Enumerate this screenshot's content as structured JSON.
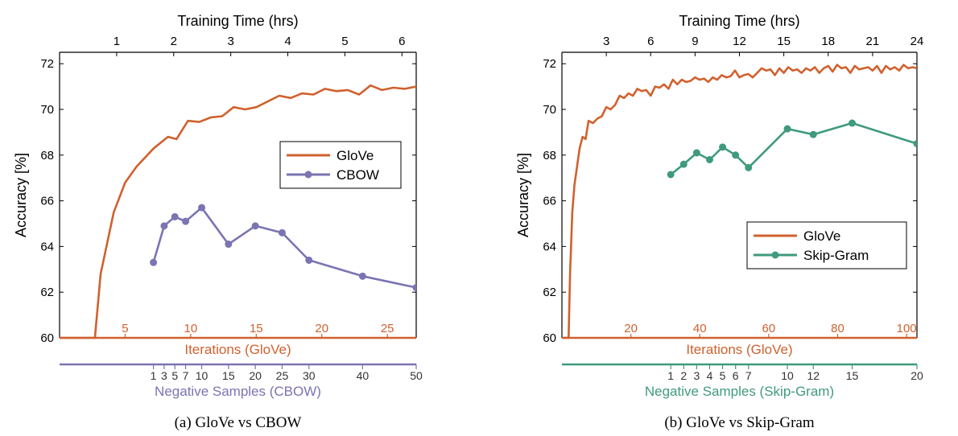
{
  "colors": {
    "glove": "#D0612E",
    "cbow": "#7A74B3",
    "skipgram": "#3F9A7E",
    "axis": "#000000"
  },
  "chart_data": [
    {
      "type": "line",
      "caption": "(a)  GloVe vs CBOW",
      "ylabel": "Accuracy [%]",
      "ylim": [
        60,
        72.5
      ],
      "yticks": [
        "60",
        "62",
        "64",
        "66",
        "68",
        "70",
        "72"
      ],
      "top_axis": {
        "label": "Training Time (hrs)",
        "range": [
          0,
          6.25
        ],
        "ticks": [
          "1",
          "2",
          "3",
          "4",
          "5",
          "6"
        ]
      },
      "iter_axis": {
        "label": "Iterations (GloVe)",
        "range": [
          0,
          27.2
        ],
        "ticks": [
          "5",
          "10",
          "15",
          "20",
          "25"
        ]
      },
      "neg_axis": {
        "label": "Negative Samples (CBOW)",
        "range": [
          -16.5,
          50
        ],
        "ticks": [
          "1",
          "3",
          "5",
          "7",
          "10",
          "15",
          "20",
          "25",
          "30",
          "40",
          "50"
        ]
      },
      "legend": {
        "position": "right",
        "entries": [
          "GloVe",
          "CBOW"
        ]
      },
      "grid": false,
      "series": [
        {
          "name": "GloVe",
          "x_axis": "top_axis",
          "x": [
            0,
            0.62,
            0.72,
            0.95,
            1.15,
            1.35,
            1.65,
            1.9,
            2.05,
            2.25,
            2.45,
            2.65,
            2.85,
            3.05,
            3.25,
            3.45,
            3.65,
            3.85,
            4.05,
            4.25,
            4.45,
            4.65,
            4.85,
            5.05,
            5.25,
            5.45,
            5.65,
            5.85,
            6.05,
            6.25
          ],
          "values": [
            60,
            60,
            62.8,
            65.5,
            66.8,
            67.5,
            68.3,
            68.8,
            68.7,
            69.5,
            69.45,
            69.65,
            69.7,
            70.1,
            70.0,
            70.1,
            70.35,
            70.6,
            70.5,
            70.7,
            70.65,
            70.9,
            70.8,
            70.85,
            70.65,
            71.05,
            70.85,
            70.95,
            70.9,
            71.0
          ]
        },
        {
          "name": "CBOW",
          "x_axis": "neg_axis",
          "x": [
            1,
            3,
            5,
            7,
            10,
            15,
            20,
            25,
            30,
            40,
            50
          ],
          "values": [
            63.3,
            64.9,
            65.3,
            65.1,
            65.7,
            64.1,
            64.9,
            64.6,
            63.4,
            62.7,
            62.2
          ]
        }
      ]
    },
    {
      "type": "line",
      "caption": "(b)  GloVe vs Skip-Gram",
      "ylabel": "Accuracy [%]",
      "ylim": [
        60,
        72.5
      ],
      "yticks": [
        "60",
        "62",
        "64",
        "66",
        "68",
        "70",
        "72"
      ],
      "top_axis": {
        "label": "Training Time (hrs)",
        "range": [
          0,
          24
        ],
        "ticks": [
          "3",
          "6",
          "9",
          "12",
          "15",
          "18",
          "21",
          "24"
        ]
      },
      "iter_axis": {
        "label": "Iterations (GloVe)",
        "range": [
          0,
          103
        ],
        "ticks": [
          "20",
          "40",
          "60",
          "80",
          "100"
        ]
      },
      "neg_axis": {
        "label": "Negative Samples (Skip-Gram)",
        "range": [
          -7.4,
          20
        ],
        "ticks": [
          "1",
          "2",
          "3",
          "4",
          "5",
          "6",
          "7",
          "10",
          "12",
          "15",
          "20"
        ]
      },
      "legend": {
        "position": "right",
        "entries": [
          "GloVe",
          "Skip-Gram"
        ]
      },
      "grid": false,
      "series": [
        {
          "name": "GloVe",
          "x_axis": "top_axis",
          "x": [
            0,
            0.45,
            0.55,
            0.7,
            0.85,
            1.0,
            1.2,
            1.4,
            1.6,
            1.8,
            2.1,
            2.4,
            2.7,
            3.0,
            3.3,
            3.6,
            3.9,
            4.2,
            4.5,
            4.8,
            5.1,
            5.4,
            5.7,
            6.0,
            6.3,
            6.6,
            6.9,
            7.2,
            7.5,
            7.8,
            8.1,
            8.4,
            8.7,
            9.0,
            9.3,
            9.6,
            9.9,
            10.2,
            10.5,
            10.8,
            11.1,
            11.4,
            11.7,
            12.0,
            12.3,
            12.6,
            12.9,
            13.2,
            13.5,
            13.8,
            14.1,
            14.4,
            14.7,
            15.0,
            15.3,
            15.6,
            15.9,
            16.2,
            16.5,
            16.8,
            17.1,
            17.4,
            17.7,
            18.0,
            18.3,
            18.6,
            18.9,
            19.2,
            19.5,
            19.8,
            20.1,
            20.4,
            20.7,
            21.0,
            21.3,
            21.6,
            21.9,
            22.2,
            22.5,
            22.8,
            23.1,
            23.4,
            23.7,
            24.0
          ],
          "values": [
            60,
            60,
            62.8,
            65.5,
            66.7,
            67.4,
            68.3,
            68.8,
            68.7,
            69.5,
            69.4,
            69.6,
            69.7,
            70.1,
            70.0,
            70.2,
            70.6,
            70.5,
            70.7,
            70.6,
            70.9,
            70.8,
            70.85,
            70.6,
            71.0,
            70.95,
            71.1,
            70.9,
            71.3,
            71.1,
            71.3,
            71.2,
            71.25,
            71.4,
            71.3,
            71.35,
            71.2,
            71.4,
            71.3,
            71.5,
            71.4,
            71.45,
            71.7,
            71.4,
            71.5,
            71.55,
            71.4,
            71.6,
            71.8,
            71.7,
            71.75,
            71.5,
            71.8,
            71.6,
            71.85,
            71.7,
            71.75,
            71.6,
            71.8,
            71.7,
            71.85,
            71.6,
            71.8,
            71.9,
            71.65,
            71.95,
            71.8,
            71.85,
            71.6,
            71.9,
            71.75,
            71.8,
            71.85,
            71.7,
            71.9,
            71.6,
            71.9,
            71.75,
            71.85,
            71.7,
            71.95,
            71.8,
            71.85,
            71.8
          ]
        },
        {
          "name": "Skip-Gram",
          "x_axis": "neg_axis",
          "x": [
            1,
            2,
            3,
            4,
            5,
            6,
            7,
            10,
            12,
            15,
            20
          ],
          "values": [
            67.15,
            67.6,
            68.1,
            67.8,
            68.35,
            68.0,
            67.45,
            69.15,
            68.9,
            69.4,
            68.5
          ]
        }
      ]
    }
  ]
}
